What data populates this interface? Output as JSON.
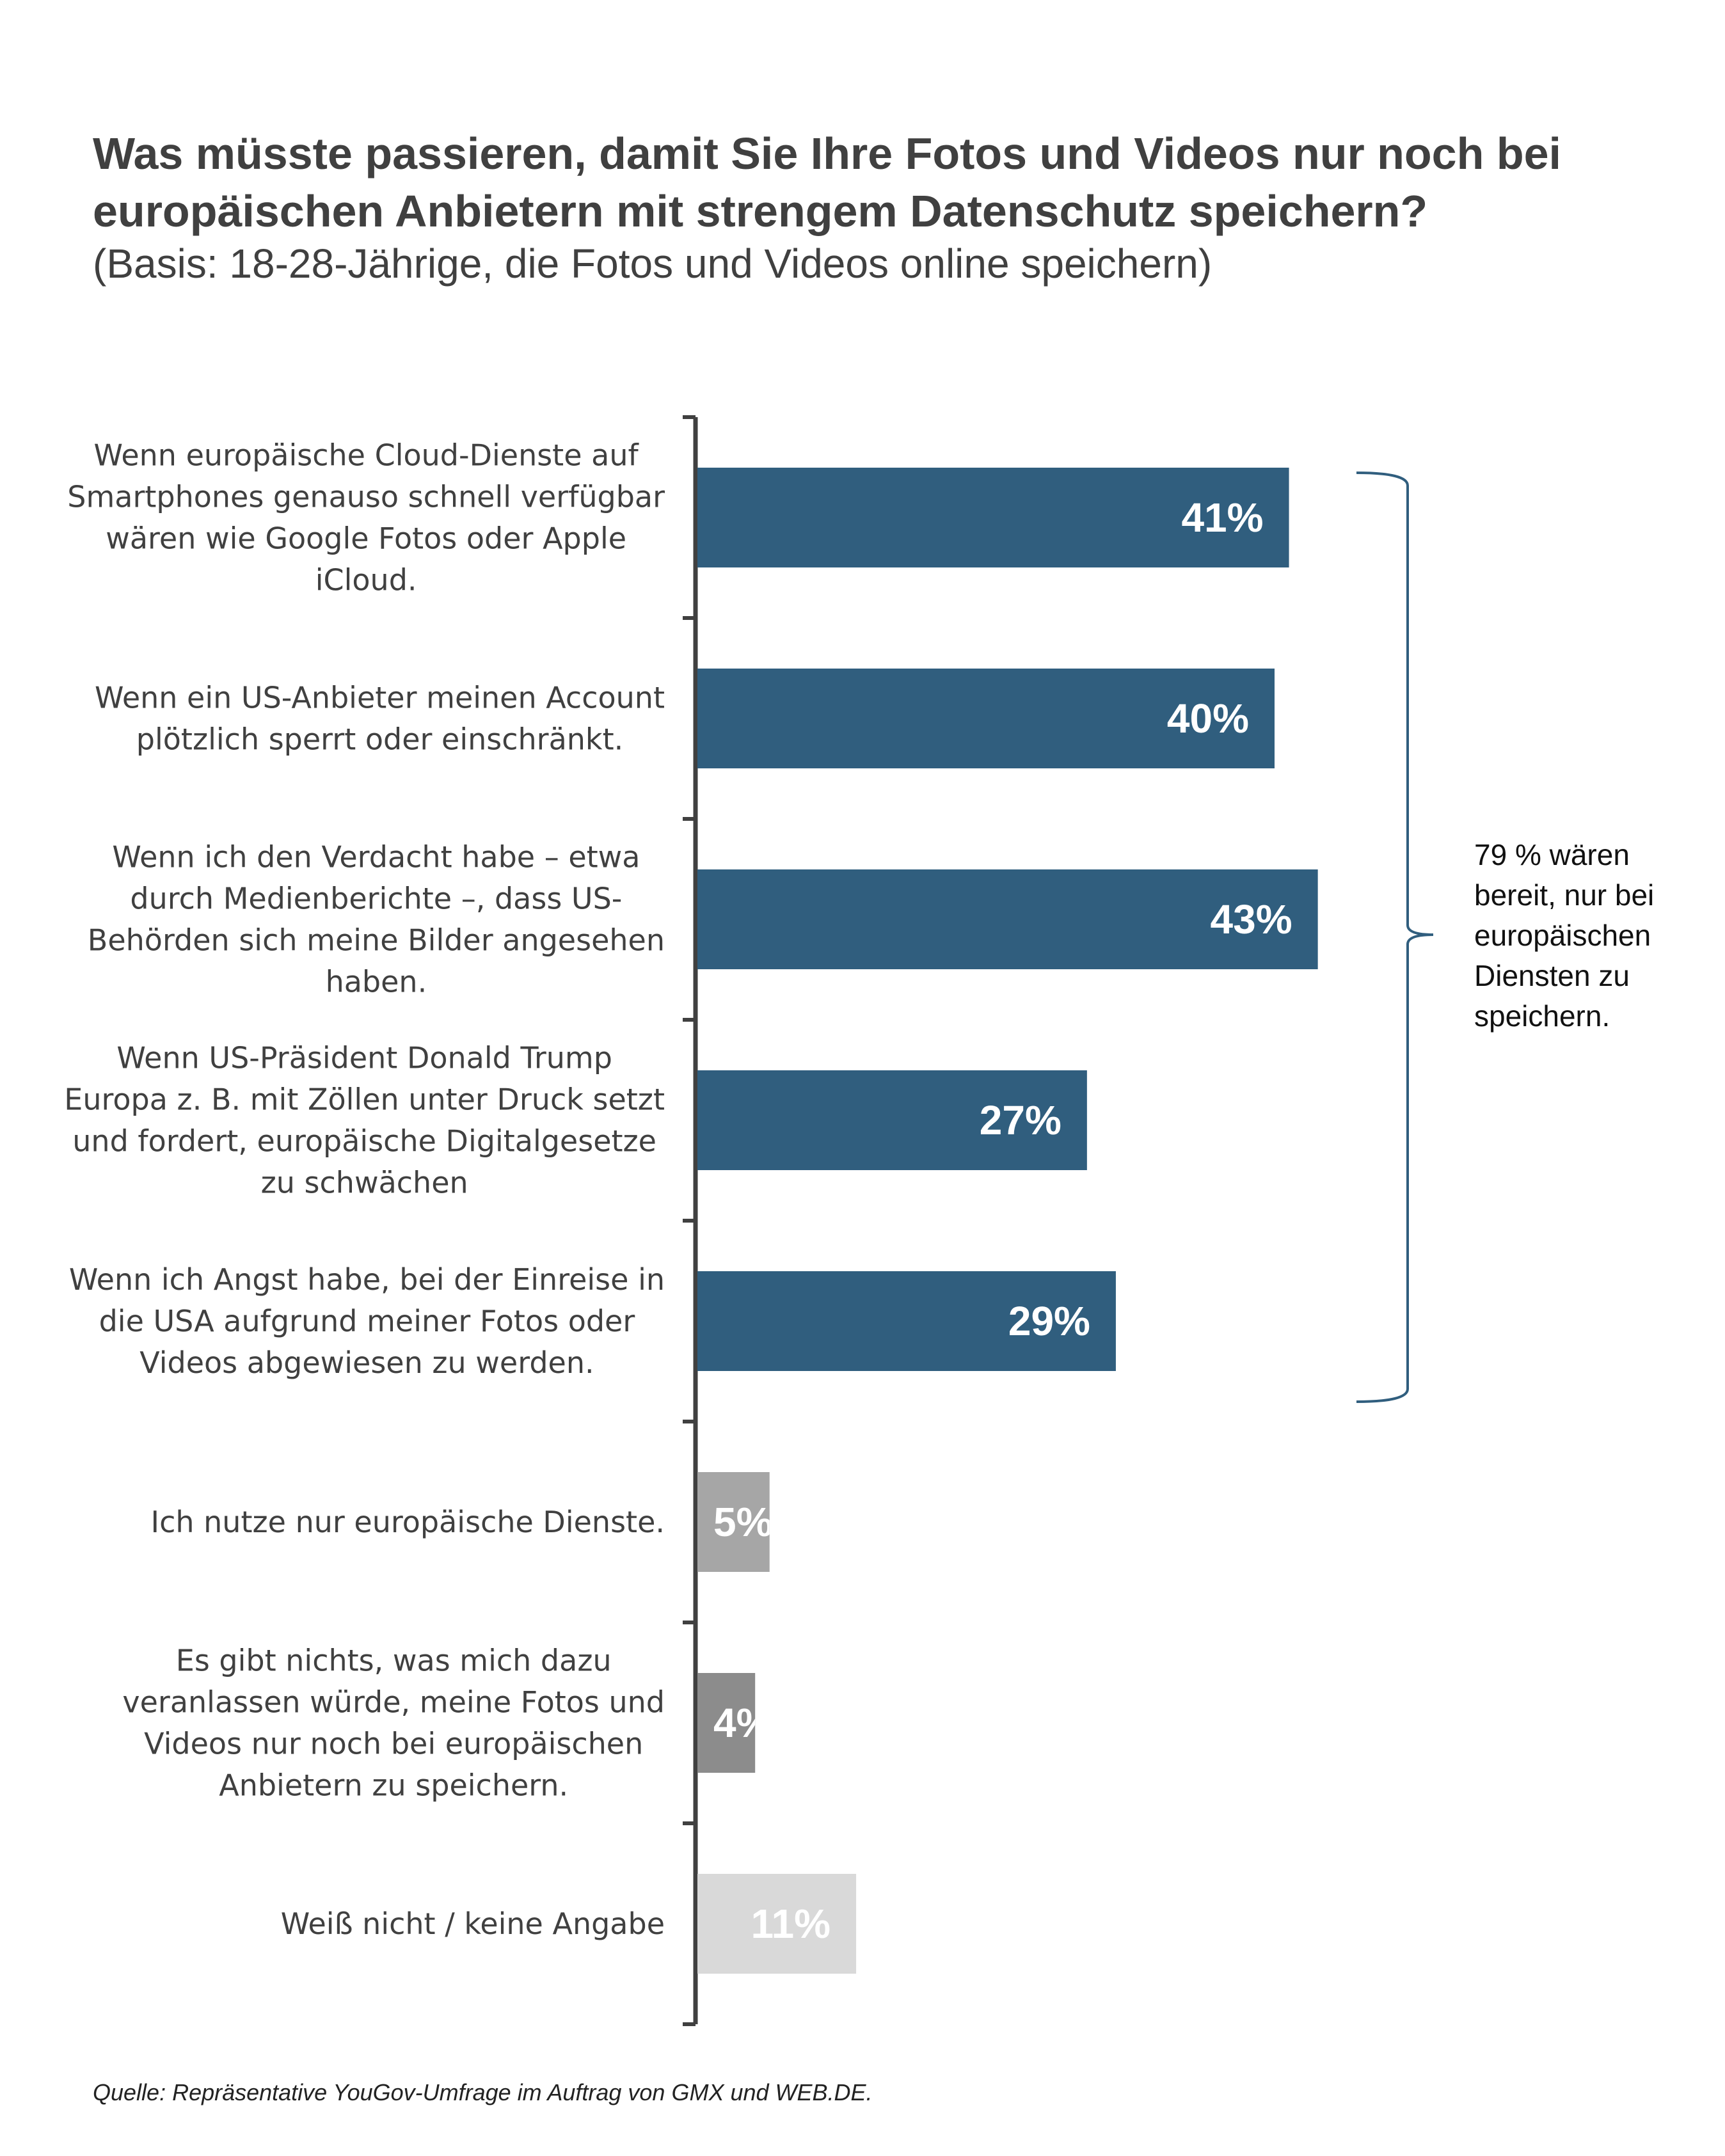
{
  "title_lines": [
    "Was müsste passieren, damit Sie Ihre Fotos und Videos nur noch bei",
    "europäischen Anbietern mit strengem Datenschutz speichern?"
  ],
  "subtitle": "(Basis: 18-28-Jährige, die Fotos und Videos online speichern)",
  "source": "Quelle: Repräsentative YouGov-Umfrage im Auftrag von GMX und WEB.DE.",
  "annotation_lines": [
    "79 % wären",
    "bereit, nur bei",
    "europäischen",
    "Diensten zu",
    "speichern."
  ],
  "colors": {
    "primary": "#305e7e",
    "grey_mid": "#a6a6a6",
    "grey_dark": "#8c8c8c",
    "grey_light": "#d9d9d9",
    "axis": "#404040",
    "bracket": "#305e7e"
  },
  "chart_data": {
    "type": "bar",
    "orientation": "horizontal",
    "unit": "%",
    "categories": [
      [
        "Wenn europäische Cloud-Dienste auf",
        "Smartphones genauso schnell verfügbar",
        "wären wie Google Fotos oder Apple",
        "iCloud."
      ],
      [
        "Wenn ein US-Anbieter meinen Account",
        "plötzlich sperrt oder einschränkt."
      ],
      [
        "Wenn ich den Verdacht habe – etwa",
        "durch Medienberichte –, dass US-",
        "Behörden sich meine Bilder angesehen",
        "haben."
      ],
      [
        "Wenn US-Präsident Donald Trump",
        "Europa z. B. mit Zöllen unter Druck setzt",
        "und fordert, europäische Digitalgesetze",
        "zu schwächen"
      ],
      [
        "Wenn ich Angst habe, bei der Einreise in",
        "die USA aufgrund meiner Fotos oder",
        "Videos abgewiesen zu werden."
      ],
      [
        "Ich nutze nur europäische Dienste."
      ],
      [
        "Es gibt nichts, was mich dazu",
        "veranlassen würde, meine Fotos und",
        "Videos nur noch bei europäischen",
        "Anbietern zu speichern."
      ],
      [
        "Weiß nicht / keine Angabe"
      ]
    ],
    "values": [
      41,
      40,
      43,
      27,
      29,
      5,
      4,
      11
    ],
    "data_labels": [
      "41%",
      "40%",
      "43%",
      "27%",
      "29%",
      "5%",
      "4%",
      "11%"
    ],
    "bar_colors": [
      "#305e7e",
      "#305e7e",
      "#305e7e",
      "#305e7e",
      "#305e7e",
      "#a6a6a6",
      "#8c8c8c",
      "#d9d9d9"
    ],
    "grid": false,
    "legend": "none"
  }
}
